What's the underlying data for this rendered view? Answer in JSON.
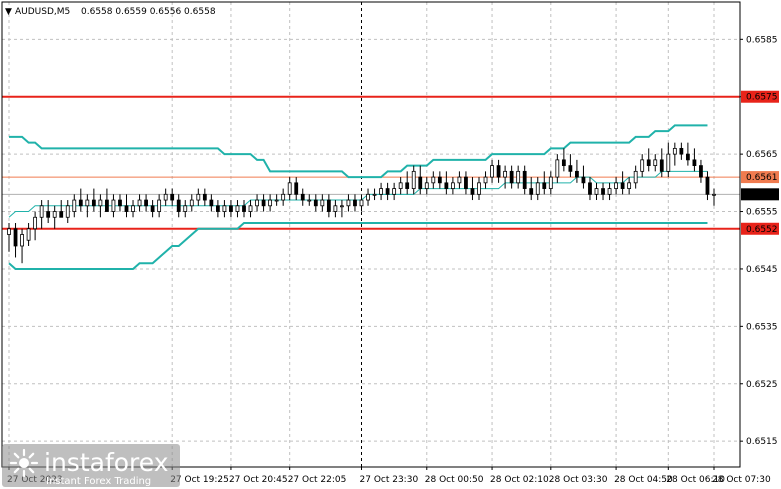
{
  "header": {
    "arrow": "▼",
    "symbol": "AUDUSD,M5",
    "ohlc": "0.6558 0.6559 0.6556 0.6558"
  },
  "watermark": {
    "brand": "instaforex",
    "tagline": "Instant Forex Trading",
    "icon": "sunburst-logo-icon"
  },
  "colors": {
    "candles": "#000000",
    "bollinger": "#20b2aa",
    "resistance_line": "#e8231a",
    "pivot_line": "#f07b4f",
    "support_line": "#e8231a",
    "grid": "#c0c0c0",
    "current_price_tag": "#000000"
  },
  "chart_data": {
    "type": "candlestick",
    "symbol": "AUDUSD",
    "timeframe": "M5",
    "ylim": [
      0.65105,
      0.65915
    ],
    "y_ticks": [
      "0.6585",
      "0.6575",
      "0.6565",
      "0.6555",
      "0.6545",
      "0.6535",
      "0.6525",
      "0.6515"
    ],
    "x_ticks": [
      "27 Oct 2023",
      "27 Oct 19:25",
      "27 Oct 20:45",
      "27 Oct 22:05",
      "27 Oct 23:30",
      "28 Oct 00:50",
      "28 Oct 02:10",
      "28 Oct 03:30",
      "28 Oct 04:50",
      "28 Oct 06:10",
      "28 Oct 07:30"
    ],
    "grid": true,
    "levels": [
      {
        "price": 0.6575,
        "label": "0.6575",
        "style": "resistance"
      },
      {
        "price": 0.6561,
        "label": "0.6561",
        "style": "pivot"
      },
      {
        "price": 0.6552,
        "label": "0.6552",
        "style": "support"
      }
    ],
    "current_price": {
      "price": 0.6558,
      "label": "0.6558"
    },
    "candles": [
      {
        "t": "27 Oct 2023",
        "o": 0.6551,
        "h": 0.6553,
        "l": 0.6548,
        "c": 0.6552
      },
      {
        "t": "",
        "o": 0.6552,
        "h": 0.6553,
        "l": 0.6547,
        "c": 0.6549
      },
      {
        "t": "",
        "o": 0.6549,
        "h": 0.6552,
        "l": 0.6546,
        "c": 0.6551
      },
      {
        "t": "",
        "o": 0.655,
        "h": 0.6553,
        "l": 0.6549,
        "c": 0.6552
      },
      {
        "t": "",
        "o": 0.6552,
        "h": 0.6555,
        "l": 0.655,
        "c": 0.6554
      },
      {
        "t": "",
        "o": 0.6554,
        "h": 0.6557,
        "l": 0.6552,
        "c": 0.6556
      },
      {
        "t": "",
        "o": 0.6555,
        "h": 0.6557,
        "l": 0.6553,
        "c": 0.6554
      },
      {
        "t": "",
        "o": 0.6554,
        "h": 0.6556,
        "l": 0.6552,
        "c": 0.6555
      },
      {
        "t": "",
        "o": 0.6555,
        "h": 0.6557,
        "l": 0.6554,
        "c": 0.6554
      },
      {
        "t": "",
        "o": 0.6554,
        "h": 0.6557,
        "l": 0.6553,
        "c": 0.6556
      },
      {
        "t": "",
        "o": 0.6555,
        "h": 0.6558,
        "l": 0.6554,
        "c": 0.6557
      },
      {
        "t": "",
        "o": 0.6557,
        "h": 0.6559,
        "l": 0.6555,
        "c": 0.6556
      },
      {
        "t": "",
        "o": 0.6556,
        "h": 0.6558,
        "l": 0.6554,
        "c": 0.6557
      },
      {
        "t": "",
        "o": 0.6557,
        "h": 0.6559,
        "l": 0.6555,
        "c": 0.6556
      },
      {
        "t": "",
        "o": 0.6556,
        "h": 0.6558,
        "l": 0.6554,
        "c": 0.6557
      },
      {
        "t": "",
        "o": 0.6557,
        "h": 0.6559,
        "l": 0.6555,
        "c": 0.6555
      },
      {
        "t": "",
        "o": 0.6555,
        "h": 0.6558,
        "l": 0.6554,
        "c": 0.6557
      },
      {
        "t": "",
        "o": 0.6557,
        "h": 0.6558,
        "l": 0.6555,
        "c": 0.6556
      },
      {
        "t": "",
        "o": 0.6556,
        "h": 0.6558,
        "l": 0.6554,
        "c": 0.6555
      },
      {
        "t": "",
        "o": 0.6555,
        "h": 0.6557,
        "l": 0.6554,
        "c": 0.6556
      },
      {
        "t": "",
        "o": 0.6556,
        "h": 0.6558,
        "l": 0.6555,
        "c": 0.6557
      },
      {
        "t": "",
        "o": 0.6557,
        "h": 0.6558,
        "l": 0.6555,
        "c": 0.6556
      },
      {
        "t": "",
        "o": 0.6556,
        "h": 0.6557,
        "l": 0.6554,
        "c": 0.6555
      },
      {
        "t": "",
        "o": 0.6555,
        "h": 0.6558,
        "l": 0.6554,
        "c": 0.6557
      },
      {
        "t": "",
        "o": 0.6557,
        "h": 0.6559,
        "l": 0.6556,
        "c": 0.6558
      },
      {
        "t": "27 Oct 19:25",
        "o": 0.6558,
        "h": 0.6559,
        "l": 0.6556,
        "c": 0.6557
      },
      {
        "t": "",
        "o": 0.6557,
        "h": 0.6558,
        "l": 0.6554,
        "c": 0.6555
      },
      {
        "t": "",
        "o": 0.6555,
        "h": 0.6557,
        "l": 0.6554,
        "c": 0.6556
      },
      {
        "t": "",
        "o": 0.6556,
        "h": 0.6558,
        "l": 0.6555,
        "c": 0.6557
      },
      {
        "t": "",
        "o": 0.6557,
        "h": 0.6559,
        "l": 0.6556,
        "c": 0.6558
      },
      {
        "t": "",
        "o": 0.6558,
        "h": 0.6559,
        "l": 0.6556,
        "c": 0.6557
      },
      {
        "t": "",
        "o": 0.6557,
        "h": 0.6558,
        "l": 0.6555,
        "c": 0.6556
      },
      {
        "t": "",
        "o": 0.6556,
        "h": 0.6557,
        "l": 0.6554,
        "c": 0.6555
      },
      {
        "t": "",
        "o": 0.6555,
        "h": 0.6557,
        "l": 0.6554,
        "c": 0.6556
      },
      {
        "t": "27 Oct 20:45",
        "o": 0.6556,
        "h": 0.6557,
        "l": 0.6554,
        "c": 0.6555
      },
      {
        "t": "",
        "o": 0.6555,
        "h": 0.6557,
        "l": 0.6554,
        "c": 0.6556
      },
      {
        "t": "",
        "o": 0.6556,
        "h": 0.6557,
        "l": 0.6554,
        "c": 0.6555
      },
      {
        "t": "",
        "o": 0.6555,
        "h": 0.6557,
        "l": 0.6554,
        "c": 0.6556
      },
      {
        "t": "",
        "o": 0.6556,
        "h": 0.6558,
        "l": 0.6555,
        "c": 0.6557
      },
      {
        "t": "",
        "o": 0.6557,
        "h": 0.6558,
        "l": 0.6555,
        "c": 0.6556
      },
      {
        "t": "",
        "o": 0.6556,
        "h": 0.6558,
        "l": 0.6555,
        "c": 0.6557
      },
      {
        "t": "",
        "o": 0.6557,
        "h": 0.6558,
        "l": 0.6556,
        "c": 0.6557
      },
      {
        "t": "",
        "o": 0.6557,
        "h": 0.6559,
        "l": 0.6556,
        "c": 0.6558
      },
      {
        "t": "27 Oct 22:05",
        "o": 0.6558,
        "h": 0.6561,
        "l": 0.6557,
        "c": 0.656
      },
      {
        "t": "",
        "o": 0.656,
        "h": 0.6561,
        "l": 0.6557,
        "c": 0.6558
      },
      {
        "t": "",
        "o": 0.6558,
        "h": 0.6559,
        "l": 0.6556,
        "c": 0.6557
      },
      {
        "t": "",
        "o": 0.6557,
        "h": 0.6558,
        "l": 0.6556,
        "c": 0.6557
      },
      {
        "t": "",
        "o": 0.6557,
        "h": 0.6558,
        "l": 0.6555,
        "c": 0.6556
      },
      {
        "t": "",
        "o": 0.6556,
        "h": 0.6558,
        "l": 0.6555,
        "c": 0.6557
      },
      {
        "t": "",
        "o": 0.6557,
        "h": 0.6558,
        "l": 0.6554,
        "c": 0.6555
      },
      {
        "t": "",
        "o": 0.6555,
        "h": 0.6557,
        "l": 0.6554,
        "c": 0.6556
      },
      {
        "t": "",
        "o": 0.6556,
        "h": 0.6557,
        "l": 0.6554,
        "c": 0.6556
      },
      {
        "t": "",
        "o": 0.6556,
        "h": 0.6558,
        "l": 0.6555,
        "c": 0.6557
      },
      {
        "t": "",
        "o": 0.6557,
        "h": 0.6558,
        "l": 0.6555,
        "c": 0.6556
      },
      {
        "t": "27 Oct 23:30",
        "o": 0.6556,
        "h": 0.6558,
        "l": 0.6555,
        "c": 0.6557
      },
      {
        "t": "",
        "o": 0.6557,
        "h": 0.6559,
        "l": 0.6556,
        "c": 0.6558
      },
      {
        "t": "",
        "o": 0.6558,
        "h": 0.6559,
        "l": 0.6557,
        "c": 0.6558
      },
      {
        "t": "",
        "o": 0.6558,
        "h": 0.656,
        "l": 0.6557,
        "c": 0.6559
      },
      {
        "t": "",
        "o": 0.6559,
        "h": 0.656,
        "l": 0.6557,
        "c": 0.6558
      },
      {
        "t": "",
        "o": 0.6558,
        "h": 0.656,
        "l": 0.6557,
        "c": 0.6559
      },
      {
        "t": "",
        "o": 0.6559,
        "h": 0.6561,
        "l": 0.6558,
        "c": 0.656
      },
      {
        "t": "",
        "o": 0.656,
        "h": 0.6562,
        "l": 0.6558,
        "c": 0.6559
      },
      {
        "t": "",
        "o": 0.6559,
        "h": 0.6563,
        "l": 0.6558,
        "c": 0.6562
      },
      {
        "t": "",
        "o": 0.6561,
        "h": 0.6563,
        "l": 0.6558,
        "c": 0.6559
      },
      {
        "t": "28 Oct 00:50",
        "o": 0.6559,
        "h": 0.6561,
        "l": 0.6558,
        "c": 0.656
      },
      {
        "t": "",
        "o": 0.656,
        "h": 0.6562,
        "l": 0.6559,
        "c": 0.6561
      },
      {
        "t": "",
        "o": 0.6561,
        "h": 0.6562,
        "l": 0.6559,
        "c": 0.656
      },
      {
        "t": "",
        "o": 0.656,
        "h": 0.6562,
        "l": 0.6558,
        "c": 0.6559
      },
      {
        "t": "",
        "o": 0.6559,
        "h": 0.6561,
        "l": 0.6558,
        "c": 0.656
      },
      {
        "t": "",
        "o": 0.656,
        "h": 0.6562,
        "l": 0.6559,
        "c": 0.6561
      },
      {
        "t": "",
        "o": 0.6561,
        "h": 0.6562,
        "l": 0.6558,
        "c": 0.6559
      },
      {
        "t": "",
        "o": 0.6559,
        "h": 0.6561,
        "l": 0.6557,
        "c": 0.6558
      },
      {
        "t": "",
        "o": 0.6558,
        "h": 0.6561,
        "l": 0.6557,
        "c": 0.656
      },
      {
        "t": "",
        "o": 0.656,
        "h": 0.6562,
        "l": 0.6559,
        "c": 0.6561
      },
      {
        "t": "28 Oct 02:10",
        "o": 0.6561,
        "h": 0.6564,
        "l": 0.656,
        "c": 0.6563
      },
      {
        "t": "",
        "o": 0.6563,
        "h": 0.6564,
        "l": 0.656,
        "c": 0.6561
      },
      {
        "t": "",
        "o": 0.6561,
        "h": 0.6563,
        "l": 0.6559,
        "c": 0.6562
      },
      {
        "t": "",
        "o": 0.6562,
        "h": 0.6563,
        "l": 0.6559,
        "c": 0.656
      },
      {
        "t": "",
        "o": 0.656,
        "h": 0.6563,
        "l": 0.6559,
        "c": 0.6562
      },
      {
        "t": "",
        "o": 0.6562,
        "h": 0.6563,
        "l": 0.6558,
        "c": 0.6559
      },
      {
        "t": "",
        "o": 0.6559,
        "h": 0.6561,
        "l": 0.6557,
        "c": 0.6558
      },
      {
        "t": "",
        "o": 0.6558,
        "h": 0.6561,
        "l": 0.6557,
        "c": 0.656
      },
      {
        "t": "",
        "o": 0.656,
        "h": 0.6562,
        "l": 0.6558,
        "c": 0.6559
      },
      {
        "t": "28 Oct 03:30",
        "o": 0.6559,
        "h": 0.6562,
        "l": 0.6558,
        "c": 0.6561
      },
      {
        "t": "",
        "o": 0.6561,
        "h": 0.6565,
        "l": 0.656,
        "c": 0.6564
      },
      {
        "t": "",
        "o": 0.6564,
        "h": 0.6566,
        "l": 0.6562,
        "c": 0.6563
      },
      {
        "t": "",
        "o": 0.6563,
        "h": 0.6565,
        "l": 0.6561,
        "c": 0.6562
      },
      {
        "t": "",
        "o": 0.6562,
        "h": 0.6564,
        "l": 0.656,
        "c": 0.6561
      },
      {
        "t": "",
        "o": 0.6561,
        "h": 0.6563,
        "l": 0.6559,
        "c": 0.656
      },
      {
        "t": "",
        "o": 0.656,
        "h": 0.6561,
        "l": 0.6557,
        "c": 0.6558
      },
      {
        "t": "",
        "o": 0.6558,
        "h": 0.656,
        "l": 0.6557,
        "c": 0.6559
      },
      {
        "t": "",
        "o": 0.6559,
        "h": 0.656,
        "l": 0.6557,
        "c": 0.6558
      },
      {
        "t": "",
        "o": 0.6558,
        "h": 0.656,
        "l": 0.6557,
        "c": 0.6559
      },
      {
        "t": "28 Oct 04:50",
        "o": 0.6559,
        "h": 0.6561,
        "l": 0.6558,
        "c": 0.656
      },
      {
        "t": "",
        "o": 0.656,
        "h": 0.6562,
        "l": 0.6558,
        "c": 0.6559
      },
      {
        "t": "",
        "o": 0.6559,
        "h": 0.6561,
        "l": 0.6558,
        "c": 0.656
      },
      {
        "t": "",
        "o": 0.656,
        "h": 0.6563,
        "l": 0.6559,
        "c": 0.6562
      },
      {
        "t": "",
        "o": 0.6562,
        "h": 0.6565,
        "l": 0.6561,
        "c": 0.6564
      },
      {
        "t": "",
        "o": 0.6564,
        "h": 0.6566,
        "l": 0.6562,
        "c": 0.6563
      },
      {
        "t": "",
        "o": 0.6563,
        "h": 0.6565,
        "l": 0.6562,
        "c": 0.6564
      },
      {
        "t": "",
        "o": 0.6564,
        "h": 0.6566,
        "l": 0.6561,
        "c": 0.6562
      },
      {
        "t": "28 Oct 06:10",
        "o": 0.6562,
        "h": 0.6567,
        "l": 0.6561,
        "c": 0.6565
      },
      {
        "t": "",
        "o": 0.6565,
        "h": 0.6567,
        "l": 0.6563,
        "c": 0.6566
      },
      {
        "t": "",
        "o": 0.6566,
        "h": 0.6567,
        "l": 0.6564,
        "c": 0.6565
      },
      {
        "t": "",
        "o": 0.6565,
        "h": 0.6567,
        "l": 0.6563,
        "c": 0.6564
      },
      {
        "t": "",
        "o": 0.6564,
        "h": 0.6566,
        "l": 0.6562,
        "c": 0.6563
      },
      {
        "t": "",
        "o": 0.6563,
        "h": 0.6564,
        "l": 0.656,
        "c": 0.6561
      },
      {
        "t": "",
        "o": 0.6561,
        "h": 0.6562,
        "l": 0.6557,
        "c": 0.6558
      },
      {
        "t": "28 Oct 07:30",
        "o": 0.6558,
        "h": 0.6559,
        "l": 0.6556,
        "c": 0.6558
      }
    ],
    "bollinger": {
      "upper": [
        0.6568,
        0.6568,
        0.6568,
        0.6567,
        0.6567,
        0.6566,
        0.6566,
        0.6566,
        0.6566,
        0.6566,
        0.6566,
        0.6566,
        0.6566,
        0.6566,
        0.6566,
        0.6566,
        0.6566,
        0.6566,
        0.6566,
        0.6566,
        0.6566,
        0.6566,
        0.6566,
        0.6566,
        0.6566,
        0.6566,
        0.6566,
        0.6566,
        0.6566,
        0.6566,
        0.6566,
        0.6566,
        0.6566,
        0.6565,
        0.6565,
        0.6565,
        0.6565,
        0.6565,
        0.6564,
        0.6564,
        0.6562,
        0.6562,
        0.6562,
        0.6562,
        0.6562,
        0.6562,
        0.6562,
        0.6562,
        0.6562,
        0.6562,
        0.6562,
        0.6562,
        0.6561,
        0.6561,
        0.6561,
        0.6561,
        0.6561,
        0.6561,
        0.6562,
        0.6562,
        0.6562,
        0.6563,
        0.6563,
        0.6563,
        0.6563,
        0.6564,
        0.6564,
        0.6564,
        0.6564,
        0.6564,
        0.6564,
        0.6564,
        0.6564,
        0.6564,
        0.6565,
        0.6565,
        0.6565,
        0.6565,
        0.6565,
        0.6565,
        0.6565,
        0.6565,
        0.6565,
        0.6566,
        0.6566,
        0.6566,
        0.6567,
        0.6567,
        0.6567,
        0.6567,
        0.6567,
        0.6567,
        0.6567,
        0.6567,
        0.6567,
        0.6567,
        0.6568,
        0.6568,
        0.6568,
        0.6569,
        0.6569,
        0.6569,
        0.657,
        0.657,
        0.657,
        0.657,
        0.657,
        0.657
      ],
      "middle": [
        0.6554,
        0.6555,
        0.6555,
        0.6555,
        0.6556,
        0.6556,
        0.6556,
        0.6556,
        0.6556,
        0.6556,
        0.6556,
        0.6556,
        0.6556,
        0.6556,
        0.6556,
        0.6556,
        0.6556,
        0.6556,
        0.6556,
        0.6556,
        0.6556,
        0.6556,
        0.6556,
        0.6556,
        0.6556,
        0.6556,
        0.6556,
        0.6556,
        0.6556,
        0.6556,
        0.6556,
        0.6556,
        0.6556,
        0.6556,
        0.6556,
        0.6556,
        0.6556,
        0.6557,
        0.6557,
        0.6557,
        0.6557,
        0.6557,
        0.6557,
        0.6557,
        0.6557,
        0.6557,
        0.6557,
        0.6557,
        0.6557,
        0.6557,
        0.6557,
        0.6557,
        0.6557,
        0.6557,
        0.6557,
        0.6558,
        0.6558,
        0.6558,
        0.6558,
        0.6558,
        0.6558,
        0.6558,
        0.6558,
        0.6559,
        0.6559,
        0.6559,
        0.6559,
        0.6559,
        0.6559,
        0.6559,
        0.6559,
        0.6559,
        0.6559,
        0.6559,
        0.6559,
        0.6559,
        0.656,
        0.656,
        0.656,
        0.656,
        0.656,
        0.656,
        0.656,
        0.656,
        0.656,
        0.656,
        0.656,
        0.6561,
        0.6561,
        0.6561,
        0.656,
        0.656,
        0.656,
        0.656,
        0.656,
        0.6561,
        0.6561,
        0.6561,
        0.6561,
        0.6561,
        0.6562,
        0.6562,
        0.6562,
        0.6562,
        0.6562,
        0.6562,
        0.6562,
        0.6562
      ],
      "lower": [
        0.6546,
        0.6545,
        0.6545,
        0.6545,
        0.6545,
        0.6545,
        0.6545,
        0.6545,
        0.6545,
        0.6545,
        0.6545,
        0.6545,
        0.6545,
        0.6545,
        0.6545,
        0.6545,
        0.6545,
        0.6545,
        0.6545,
        0.6545,
        0.6546,
        0.6546,
        0.6546,
        0.6547,
        0.6548,
        0.6549,
        0.6549,
        0.655,
        0.6551,
        0.6552,
        0.6552,
        0.6552,
        0.6552,
        0.6552,
        0.6552,
        0.6552,
        0.6553,
        0.6553,
        0.6553,
        0.6553,
        0.6553,
        0.6553,
        0.6553,
        0.6553,
        0.6553,
        0.6553,
        0.6553,
        0.6553,
        0.6553,
        0.6553,
        0.6553,
        0.6553,
        0.6553,
        0.6553,
        0.6553,
        0.6553,
        0.6553,
        0.6553,
        0.6553,
        0.6553,
        0.6553,
        0.6553,
        0.6553,
        0.6553,
        0.6553,
        0.6553,
        0.6553,
        0.6553,
        0.6553,
        0.6553,
        0.6553,
        0.6553,
        0.6553,
        0.6553,
        0.6553,
        0.6553,
        0.6553,
        0.6553,
        0.6553,
        0.6553,
        0.6553,
        0.6553,
        0.6553,
        0.6553,
        0.6553,
        0.6553,
        0.6553,
        0.6553,
        0.6553,
        0.6553,
        0.6553,
        0.6553,
        0.6553,
        0.6553,
        0.6553,
        0.6553,
        0.6553,
        0.6553,
        0.6553,
        0.6553,
        0.6553,
        0.6553,
        0.6553,
        0.6553,
        0.6553,
        0.6553,
        0.6553,
        0.6553
      ]
    }
  }
}
